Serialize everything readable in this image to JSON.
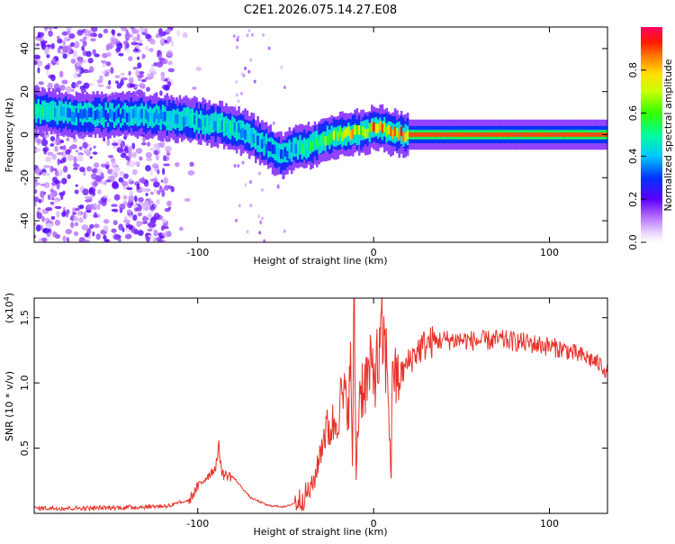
{
  "title": "C2E1.2026.075.14.27.E08",
  "colors": {
    "snr_line": "#e8322a",
    "axis": "#000000"
  },
  "chart_data": [
    {
      "type": "heatmap",
      "title": "C2E1.2026.075.14.27.E08",
      "xlabel": "Height of straight line (km)",
      "ylabel": "Frequency (Hz)",
      "xlim": [
        -193,
        133
      ],
      "ylim": [
        -50,
        50
      ],
      "x_ticks": [
        -100,
        0,
        100
      ],
      "y_ticks": [
        -40,
        -20,
        0,
        20,
        40
      ],
      "colorbar": {
        "label": "Normalized spectral amplitude",
        "range": [
          0,
          1
        ],
        "ticks": [
          "0.0",
          "0.2",
          "0.4",
          "0.6",
          "0.8"
        ],
        "colormap": "rainbow-white-low"
      },
      "ridge": {
        "x": [
          -193,
          -180,
          -165,
          -150,
          -135,
          -120,
          -105,
          -90,
          -80,
          -70,
          -60,
          -52,
          -45,
          -40,
          -35,
          -30,
          -25,
          -20,
          -15,
          -10,
          -5,
          0,
          5,
          10,
          20,
          40,
          60,
          80,
          100,
          133
        ],
        "freq": [
          11,
          10,
          9,
          9,
          9,
          8,
          7,
          5,
          3,
          0,
          -6,
          -10,
          -6,
          -6,
          -5,
          -3,
          -1,
          0,
          0,
          1,
          1,
          3,
          3,
          1,
          0,
          0,
          0,
          0,
          0,
          0
        ],
        "amplitude": [
          0.6,
          0.5,
          0.4,
          0.35,
          0.4,
          0.45,
          0.45,
          0.5,
          0.5,
          0.45,
          0.35,
          0.4,
          0.45,
          0.55,
          0.6,
          0.65,
          0.7,
          0.8,
          0.8,
          0.85,
          0.85,
          0.9,
          0.9,
          0.9,
          0.9,
          0.9,
          0.9,
          0.9,
          0.9,
          0.9
        ]
      }
    },
    {
      "type": "line",
      "xlabel": "Height of straight line (km)",
      "ylabel": "SNR (10 * v/v)",
      "y_multiplier": "(x10",
      "y_multiplier_exp": "4",
      "y_multiplier_close": ")",
      "xlim": [
        -193,
        133
      ],
      "ylim": [
        0,
        1.65
      ],
      "x_ticks": [
        -100,
        0,
        100
      ],
      "y_ticks": [
        "0.5",
        "1.0",
        "1.5"
      ],
      "series": [
        {
          "name": "SNR",
          "x": [
            -193,
            -160,
            -130,
            -115,
            -105,
            -100,
            -95,
            -90,
            -88,
            -86,
            -80,
            -75,
            -70,
            -60,
            -50,
            -45,
            -40,
            -35,
            -32,
            -30,
            -28,
            -25,
            -22,
            -20,
            -18,
            -16,
            -14,
            -13,
            -12,
            -11,
            -10,
            -8,
            -5,
            -3,
            0,
            3,
            5,
            8,
            10,
            11,
            12,
            15,
            18,
            22,
            25,
            30,
            35,
            40,
            50,
            60,
            70,
            80,
            90,
            100,
            110,
            115,
            120,
            125,
            130,
            133
          ],
          "y": [
            0.04,
            0.04,
            0.05,
            0.06,
            0.1,
            0.2,
            0.28,
            0.35,
            0.5,
            0.3,
            0.28,
            0.2,
            0.12,
            0.06,
            0.05,
            0.08,
            0.12,
            0.2,
            0.35,
            0.5,
            0.62,
            0.65,
            0.7,
            0.8,
            0.88,
            0.85,
            0.9,
            1.1,
            0.4,
            1.65,
            0.3,
            0.95,
            1.0,
            1.05,
            1.1,
            1.15,
            1.35,
            1.1,
            0.25,
            1.4,
            1.0,
            1.05,
            1.12,
            1.2,
            1.25,
            1.3,
            1.32,
            1.33,
            1.33,
            1.32,
            1.33,
            1.32,
            1.3,
            1.28,
            1.25,
            1.22,
            1.2,
            1.17,
            1.13,
            1.08
          ]
        }
      ]
    }
  ]
}
